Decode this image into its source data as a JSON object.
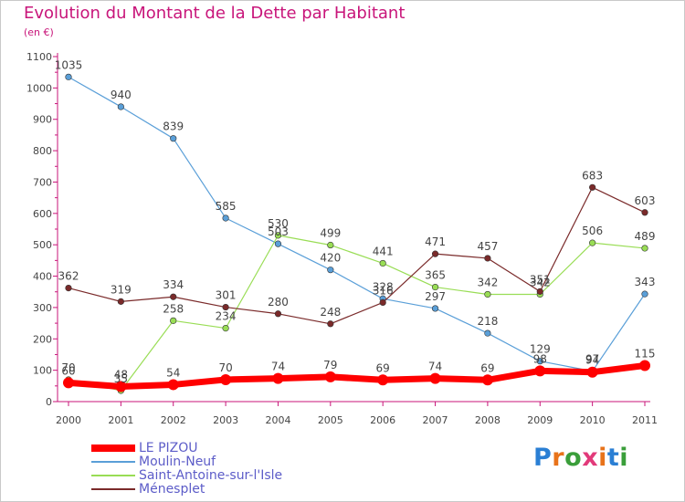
{
  "title": "Evolution du Montant de la Dette par Habitant",
  "subtitle": "(en €)",
  "brand": {
    "text": "Proxiti",
    "letter_colors": [
      "#2a7fd4",
      "#e8731a",
      "#3a9e3a",
      "#e23a7a",
      "#e8731a",
      "#2a7fd4",
      "#3a9e3a"
    ]
  },
  "chart_data": {
    "type": "line",
    "x": [
      "2000",
      "2001",
      "2002",
      "2003",
      "2004",
      "2005",
      "2006",
      "2007",
      "2008",
      "2009",
      "2010",
      "2011"
    ],
    "ylim": [
      0,
      1100
    ],
    "yticks": [
      0,
      100,
      200,
      300,
      400,
      500,
      600,
      700,
      800,
      900,
      1000,
      1100
    ],
    "grid": false,
    "legend_position": "bottom-left",
    "series": [
      {
        "name": "LE PIZOU",
        "color": "#ff0000",
        "values": [
          60,
          48,
          54,
          70,
          74,
          79,
          69,
          74,
          69,
          98,
          94,
          115
        ],
        "labels": [
          "60",
          "48",
          "54",
          "70",
          "74",
          "79",
          "69",
          "74",
          "69",
          "98",
          "94",
          "115"
        ]
      },
      {
        "name": "Moulin-Neuf",
        "color": "#5a9fd8",
        "values": [
          1035,
          940,
          839,
          585,
          503,
          420,
          328,
          297,
          218,
          129,
          97,
          343
        ],
        "labels": [
          "1035",
          "940",
          "839",
          "585",
          "503",
          "420",
          "328",
          "297",
          "218",
          "129",
          "97",
          "343"
        ]
      },
      {
        "name": "Saint-Antoine-sur-l'Isle",
        "color": "#99dd55",
        "values": [
          70,
          35,
          258,
          234,
          530,
          499,
          441,
          365,
          342,
          342,
          506,
          489
        ],
        "labels": [
          "70",
          "35",
          "258",
          "234",
          "530",
          "499",
          "441",
          "365",
          "342",
          "342",
          "506",
          "489"
        ]
      },
      {
        "name": "Ménesplet",
        "color": "#7a2a2a",
        "values": [
          362,
          319,
          334,
          301,
          280,
          248,
          316,
          471,
          457,
          351,
          683,
          603
        ],
        "labels": [
          "362",
          "319",
          "334",
          "301",
          "280",
          "248",
          "316",
          "471",
          "457",
          "351",
          "683",
          "603"
        ]
      }
    ]
  }
}
